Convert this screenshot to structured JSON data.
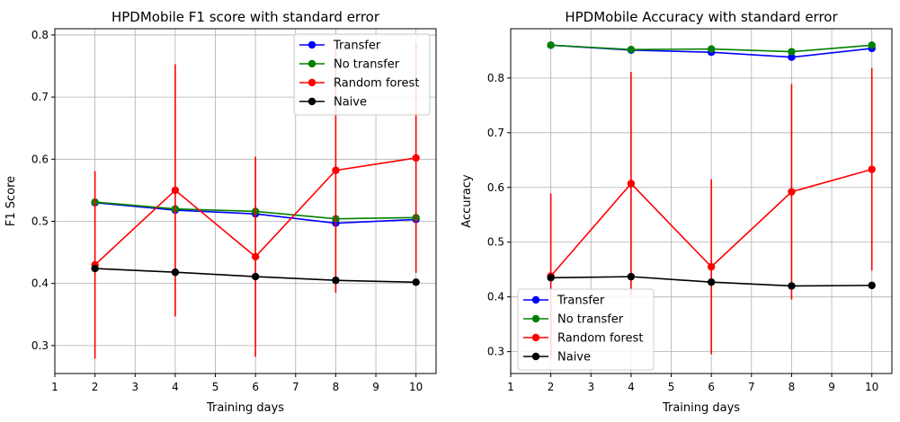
{
  "chart_data": [
    {
      "type": "line",
      "title": "HPDMobile F1 score with standard error",
      "xlabel": "Training days",
      "ylabel": "F1 Score",
      "xlim": [
        1,
        10.5
      ],
      "ylim": [
        0.255,
        0.81
      ],
      "xticks": [
        1,
        2,
        3,
        4,
        5,
        6,
        7,
        8,
        9,
        10
      ],
      "yticks": [
        0.3,
        0.4,
        0.5,
        0.6,
        0.7,
        0.8
      ],
      "grid": true,
      "legend_position": "top-right",
      "x": [
        2,
        4,
        6,
        8,
        10
      ],
      "series": [
        {
          "name": "Transfer",
          "color": "#0000ff",
          "values": [
            0.53,
            0.518,
            0.512,
            0.497,
            0.503
          ]
        },
        {
          "name": "No transfer",
          "color": "#008000",
          "values": [
            0.531,
            0.52,
            0.516,
            0.504,
            0.506
          ]
        },
        {
          "name": "Random forest",
          "color": "#ff0000",
          "values": [
            0.43,
            0.55,
            0.443,
            0.582,
            0.602
          ],
          "error": [
            0.151,
            0.203,
            0.161,
            0.197,
            0.185
          ]
        },
        {
          "name": "Naive",
          "color": "#000000",
          "values": [
            0.424,
            0.418,
            0.411,
            0.405,
            0.402
          ]
        }
      ]
    },
    {
      "type": "line",
      "title": "HPDMobile Accuracy with standard error",
      "xlabel": "Training days",
      "ylabel": "Accuracy",
      "xlim": [
        1,
        10.5
      ],
      "ylim": [
        0.26,
        0.89
      ],
      "xticks": [
        1,
        2,
        3,
        4,
        5,
        6,
        7,
        8,
        9,
        10
      ],
      "yticks": [
        0.3,
        0.4,
        0.5,
        0.6,
        0.7,
        0.8
      ],
      "grid": true,
      "legend_position": "bottom-left",
      "x": [
        2,
        4,
        6,
        8,
        10
      ],
      "series": [
        {
          "name": "Transfer",
          "color": "#0000ff",
          "values": [
            0.86,
            0.851,
            0.847,
            0.838,
            0.854
          ]
        },
        {
          "name": "No transfer",
          "color": "#008000",
          "values": [
            0.86,
            0.852,
            0.853,
            0.848,
            0.86
          ]
        },
        {
          "name": "Random forest",
          "color": "#ff0000",
          "values": [
            0.438,
            0.607,
            0.455,
            0.592,
            0.633
          ],
          "error": [
            0.151,
            0.204,
            0.16,
            0.197,
            0.185
          ]
        },
        {
          "name": "Naive",
          "color": "#000000",
          "values": [
            0.435,
            0.437,
            0.427,
            0.42,
            0.421
          ]
        }
      ]
    }
  ]
}
